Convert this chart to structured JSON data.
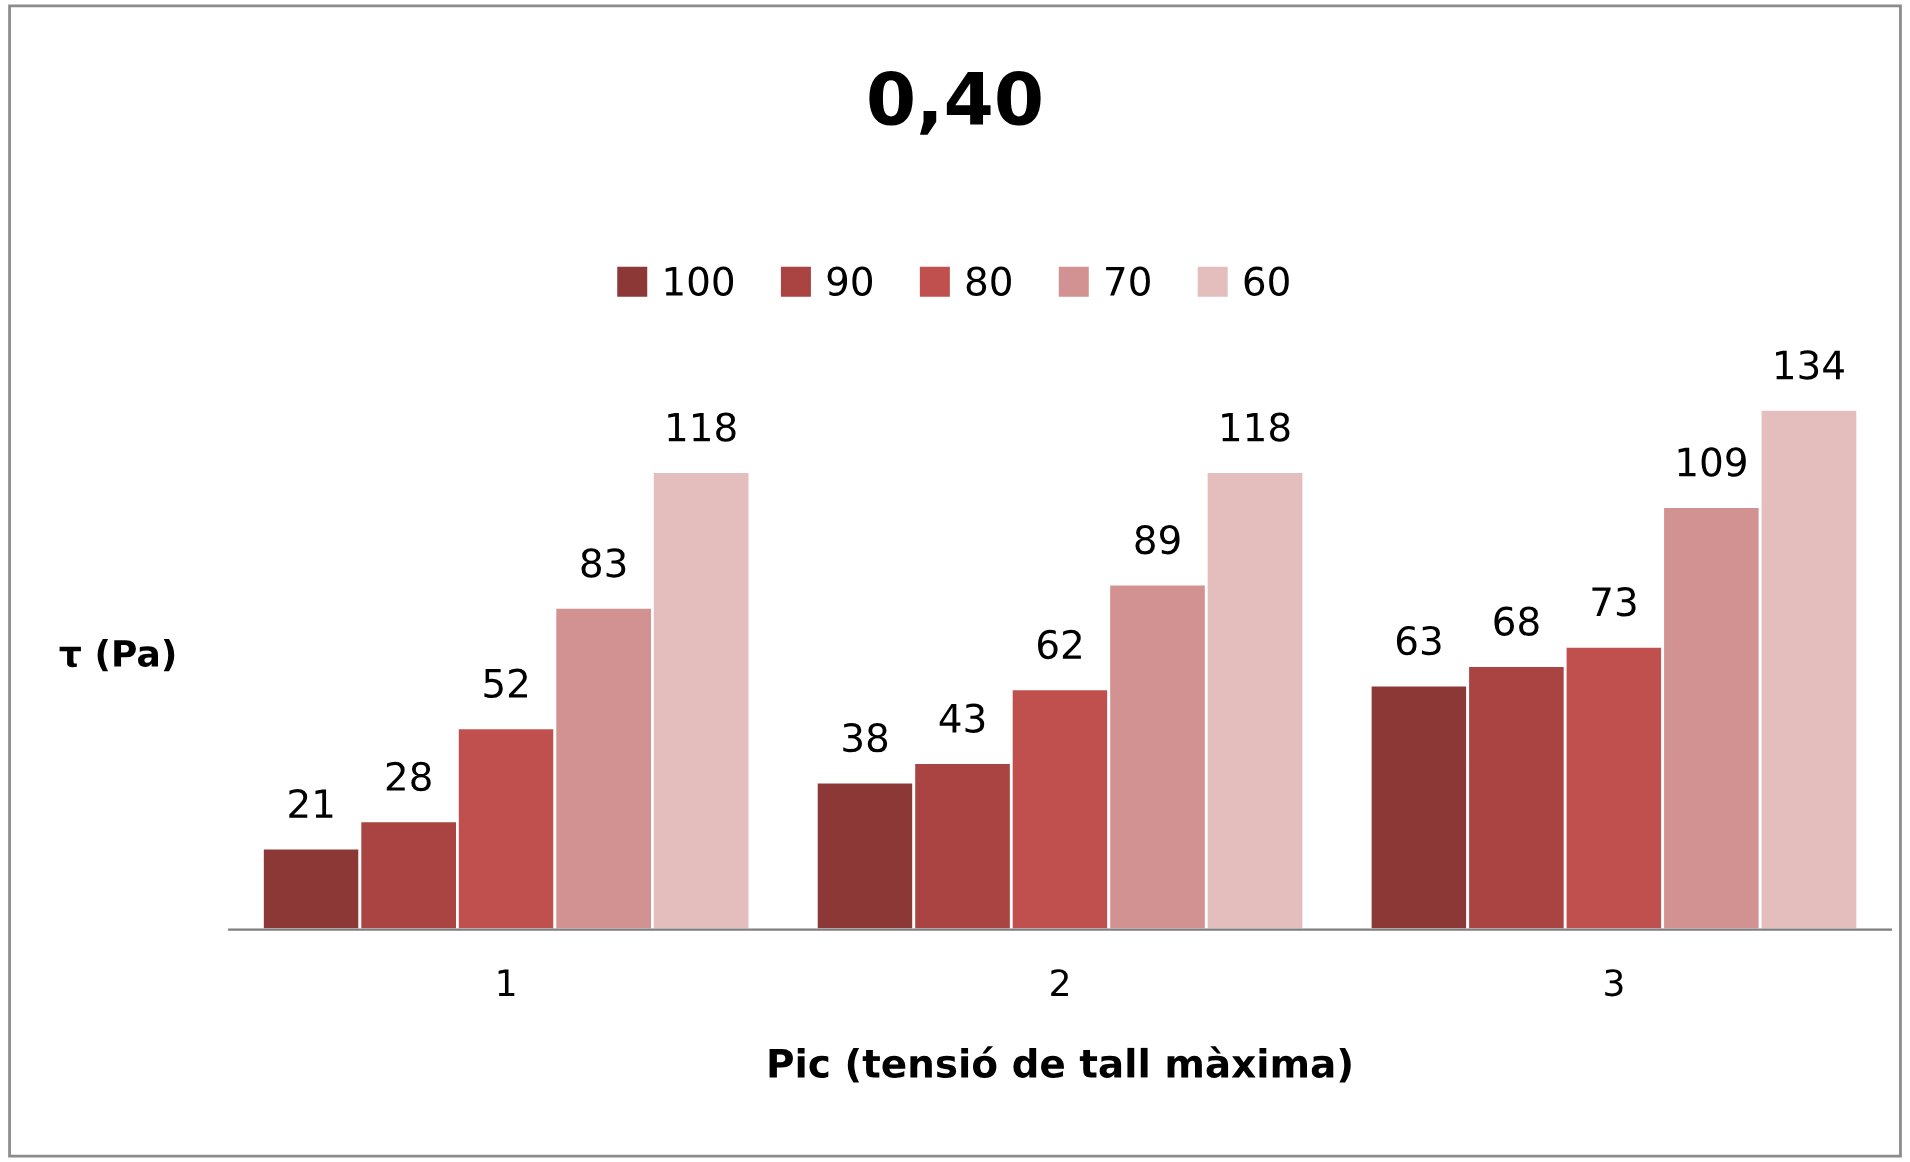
{
  "chart_data": {
    "type": "bar",
    "title": "0,40",
    "xlabel": "Pic (tensió de tall màxima)",
    "ylabel": "τ (Pa)",
    "categories": [
      "1",
      "2",
      "3"
    ],
    "series": [
      {
        "name": "100",
        "color": "#8c3836",
        "values": [
          21,
          38,
          63
        ]
      },
      {
        "name": "90",
        "color": "#a94442",
        "values": [
          28,
          43,
          68
        ]
      },
      {
        "name": "80",
        "color": "#c0504d",
        "values": [
          52,
          62,
          73
        ]
      },
      {
        "name": "70",
        "color": "#d29291",
        "values": [
          83,
          89,
          109
        ]
      },
      {
        "name": "60",
        "color": "#e4bdbd",
        "values": [
          118,
          118,
          134
        ]
      }
    ],
    "data_labels": true,
    "legend": "top",
    "grid": false,
    "tick_labels": "x"
  }
}
